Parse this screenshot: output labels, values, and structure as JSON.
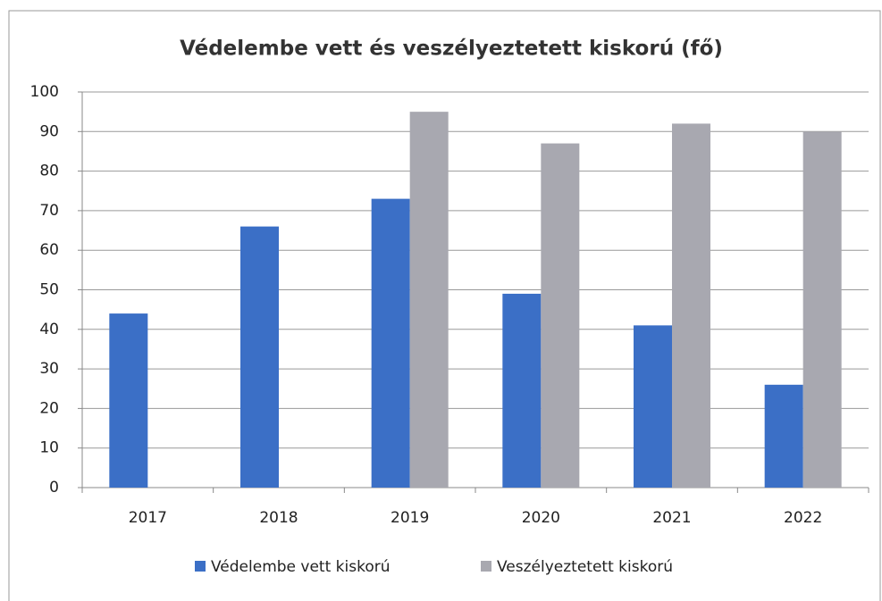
{
  "chart_data": {
    "type": "bar",
    "title": "Védelembe vett és veszélyeztetett kiskorú (fő)",
    "categories": [
      "2017",
      "2018",
      "2019",
      "2020",
      "2021",
      "2022"
    ],
    "series": [
      {
        "name": "Védelembe vett kiskorú",
        "color": "#3b6fc6",
        "values": [
          44,
          66,
          73,
          49,
          41,
          26
        ]
      },
      {
        "name": "Veszélyeztetett kiskorú",
        "color": "#a8a8b0",
        "values": [
          null,
          null,
          95,
          87,
          92,
          90
        ]
      }
    ],
    "ylim": [
      0,
      100
    ],
    "yticks": [
      0,
      10,
      20,
      30,
      40,
      50,
      60,
      70,
      80,
      90,
      100
    ],
    "grid": true,
    "legend": "bottom"
  }
}
